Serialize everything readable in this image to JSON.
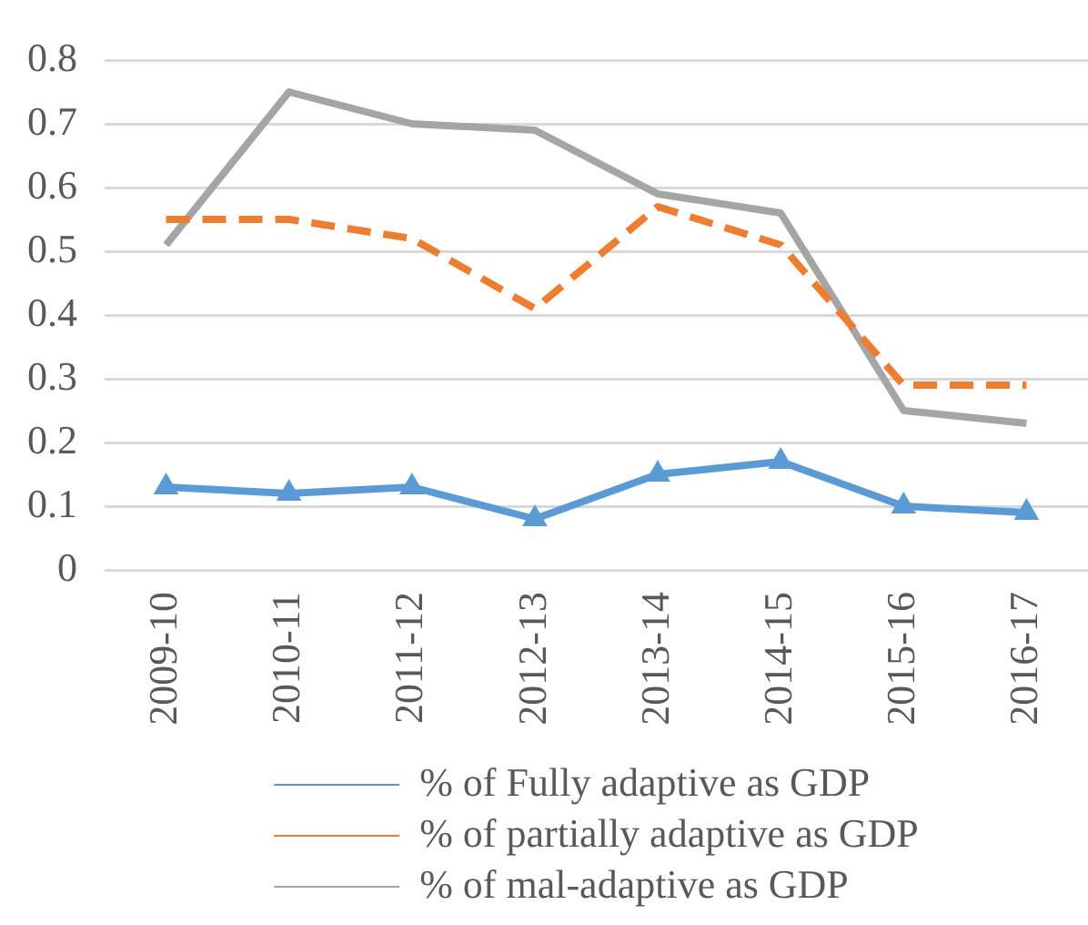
{
  "chart_data": {
    "type": "line",
    "categories": [
      "2009-10",
      "2010-11",
      "2011-12",
      "2012-13",
      "2013-14",
      "2014-15",
      "2015-16",
      "2016-17"
    ],
    "series": [
      {
        "name": "% of Fully adaptive as GDP",
        "color": "#5b9bd5",
        "values": [
          0.13,
          0.12,
          0.13,
          0.08,
          0.15,
          0.17,
          0.1,
          0.09
        ],
        "marker": "triangle",
        "line_style": "solid"
      },
      {
        "name": "% of partially adaptive as GDP",
        "color": "#ed7d31",
        "values": [
          0.55,
          0.55,
          0.52,
          0.41,
          0.57,
          0.51,
          0.29,
          0.29
        ],
        "marker": "none",
        "line_style": "dashed"
      },
      {
        "name": "% of mal-adaptive as GDP",
        "color": "#a5a5a5",
        "values": [
          0.51,
          0.75,
          0.7,
          0.69,
          0.59,
          0.56,
          0.25,
          0.23
        ],
        "marker": "none",
        "line_style": "solid"
      }
    ],
    "ylim": [
      0,
      0.8
    ],
    "yticks": [
      0,
      0.1,
      0.2,
      0.3,
      0.4,
      0.5,
      0.6,
      0.7,
      0.8
    ],
    "grid": "y",
    "legend": "bottom"
  }
}
